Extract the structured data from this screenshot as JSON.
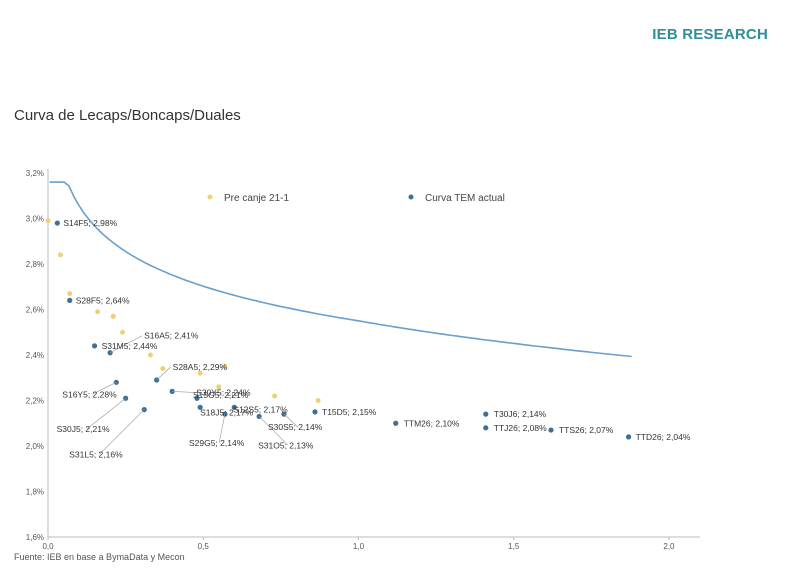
{
  "header": {
    "brand": "IEB RESEARCH"
  },
  "footer": {
    "source": "Fuente: IEB en base a BymaData y Mecon"
  },
  "colors": {
    "curve": "#6a9ecb",
    "tem": "#3f6f95",
    "pre": "#f0cf78",
    "brand": "#2e8f9a"
  },
  "chart_data": {
    "type": "scatter",
    "title": "Curva de Lecaps/Boncaps/Duales",
    "xlabel": "",
    "ylabel": "",
    "xlim": [
      0,
      2.1
    ],
    "ylim": [
      1.6,
      3.2
    ],
    "x_ticks": [
      "0,0",
      "0,5",
      "1,0",
      "1,5",
      "2,0"
    ],
    "x_tick_values": [
      0,
      0.5,
      1.0,
      1.5,
      2.0
    ],
    "y_ticks": [
      "1,6%",
      "1,8%",
      "2,0%",
      "2,2%",
      "2,4%",
      "2,6%",
      "2,8%",
      "3,0%",
      "3,2%"
    ],
    "y_tick_values": [
      1.6,
      1.8,
      2.0,
      2.2,
      2.4,
      2.6,
      2.8,
      3.0,
      3.2
    ],
    "grid": false,
    "legend_position": "top",
    "series": [
      {
        "name": "Pre canje 21-1",
        "points": [
          {
            "x": 0.0,
            "y": 2.99
          },
          {
            "x": 0.04,
            "y": 2.84
          },
          {
            "x": 0.07,
            "y": 2.67
          },
          {
            "x": 0.16,
            "y": 2.59
          },
          {
            "x": 0.21,
            "y": 2.57
          },
          {
            "x": 0.24,
            "y": 2.5
          },
          {
            "x": 0.33,
            "y": 2.4
          },
          {
            "x": 0.37,
            "y": 2.34
          },
          {
            "x": 0.49,
            "y": 2.32
          },
          {
            "x": 0.55,
            "y": 2.26
          },
          {
            "x": 0.57,
            "y": 2.35
          },
          {
            "x": 0.73,
            "y": 2.22
          },
          {
            "x": 0.87,
            "y": 2.2
          }
        ]
      },
      {
        "name": "Curva TEM actual",
        "points": [
          {
            "x": 0.03,
            "y": 2.98,
            "label": "S14F5; 2,98%"
          },
          {
            "x": 0.07,
            "y": 2.64,
            "label": "S28F5; 2,64%"
          },
          {
            "x": 0.2,
            "y": 2.41,
            "label": "S16A5; 2,41%"
          },
          {
            "x": 0.15,
            "y": 2.44,
            "label": "S31M5; 2,44%"
          },
          {
            "x": 0.35,
            "y": 2.29,
            "label": "S28A5; 2,29%"
          },
          {
            "x": 0.4,
            "y": 2.24,
            "label": "S30Y5; 2,24%"
          },
          {
            "x": 0.22,
            "y": 2.28,
            "label": "S16Y5; 2,28%"
          },
          {
            "x": 0.49,
            "y": 2.17,
            "label": "S18J5; 2,17%"
          },
          {
            "x": 0.25,
            "y": 2.21,
            "label": "S30J5; 2,21%"
          },
          {
            "x": 0.48,
            "y": 2.21,
            "label": "S15G5; 2,21%"
          },
          {
            "x": 0.6,
            "y": 2.17,
            "label": "S12S5; 2,17%"
          },
          {
            "x": 0.31,
            "y": 2.16,
            "label": "S31L5; 2,16%"
          },
          {
            "x": 0.57,
            "y": 2.14,
            "label": "S29G5; 2,14%"
          },
          {
            "x": 0.76,
            "y": 2.14,
            "label": "S30S5; 2,14%"
          },
          {
            "x": 0.68,
            "y": 2.13,
            "label": "S31O5; 2,13%"
          },
          {
            "x": 0.86,
            "y": 2.15,
            "label": "T15D5; 2,15%"
          },
          {
            "x": 1.12,
            "y": 2.1,
            "label": "TTM26; 2,10%"
          },
          {
            "x": 1.41,
            "y": 2.14,
            "label": "T30J6; 2,14%"
          },
          {
            "x": 1.41,
            "y": 2.08,
            "label": "TTJ26; 2,08%"
          },
          {
            "x": 1.62,
            "y": 2.07,
            "label": "TTS26; 2,07%"
          },
          {
            "x": 1.87,
            "y": 2.04,
            "label": "TTD26; 2,04%"
          }
        ]
      }
    ]
  }
}
